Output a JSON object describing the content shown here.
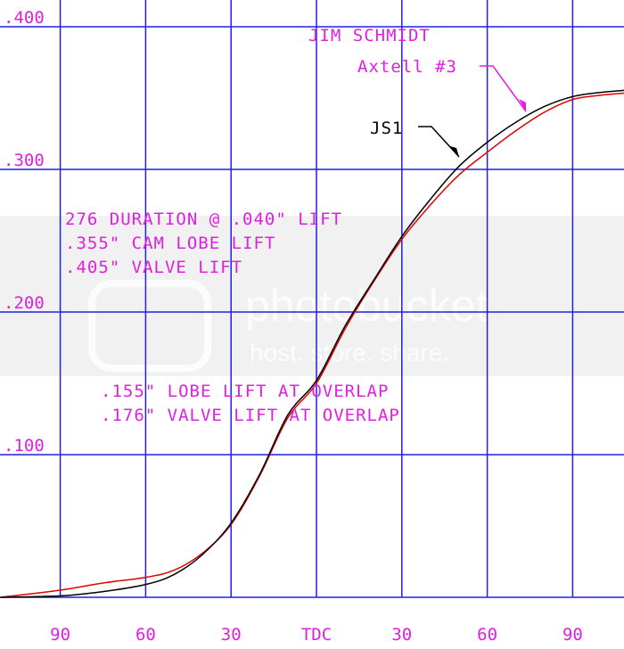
{
  "chart_data": {
    "type": "line",
    "title": "",
    "xlabel": "",
    "ylabel": "",
    "x_tick_labels": [
      "90",
      "60",
      "30",
      "TDC",
      "30",
      "60",
      "90"
    ],
    "x_tick_values": [
      -90,
      -60,
      -30,
      0,
      30,
      60,
      90
    ],
    "y_tick_labels": [
      ".100",
      ".200",
      ".300",
      ".400"
    ],
    "y_tick_values": [
      0.1,
      0.2,
      0.3,
      0.4
    ],
    "xlim": [
      -111,
      112
    ],
    "ylim": [
      0,
      0.42
    ],
    "grid": true,
    "grid_color": "#2020e0",
    "series": [
      {
        "name": "JS1",
        "color": "#000000",
        "x": [
          -111,
          -90,
          -75,
          -60,
          -50,
          -40,
          -30,
          -20,
          -10,
          0,
          10,
          20,
          30,
          40,
          50,
          60,
          70,
          80,
          90,
          100,
          112
        ],
        "y": [
          0,
          0.001,
          0.004,
          0.009,
          0.016,
          0.03,
          0.052,
          0.086,
          0.128,
          0.152,
          0.19,
          0.222,
          0.253,
          0.279,
          0.302,
          0.319,
          0.333,
          0.344,
          0.351,
          0.354,
          0.356
        ]
      },
      {
        "name": "Axtell #3",
        "color": "#e00000",
        "x": [
          -111,
          -90,
          -75,
          -60,
          -50,
          -40,
          -30,
          -20,
          -10,
          0,
          10,
          20,
          30,
          40,
          50,
          60,
          70,
          80,
          90,
          100,
          112
        ],
        "y": [
          0,
          0.005,
          0.01,
          0.014,
          0.019,
          0.031,
          0.051,
          0.085,
          0.126,
          0.15,
          0.188,
          0.221,
          0.251,
          0.275,
          0.296,
          0.312,
          0.327,
          0.34,
          0.349,
          0.352,
          0.354
        ]
      }
    ],
    "annotations": {
      "author": "JIM SCHMIDT",
      "series_label_red": "Axtell #3",
      "series_label_black": "JS1",
      "specs": [
        "276 DURATION @ .040\" LIFT",
        ".355\" CAM LOBE LIFT",
        ".405\" VALVE LIFT"
      ],
      "overlap": [
        ".155\" LOBE LIFT AT OVERLAP",
        ".176\" VALVE LIFT AT OVERLAP"
      ]
    },
    "label_color": "#e020e0"
  },
  "watermark": {
    "brand": "photobucket",
    "tagline": "host. store. share."
  }
}
